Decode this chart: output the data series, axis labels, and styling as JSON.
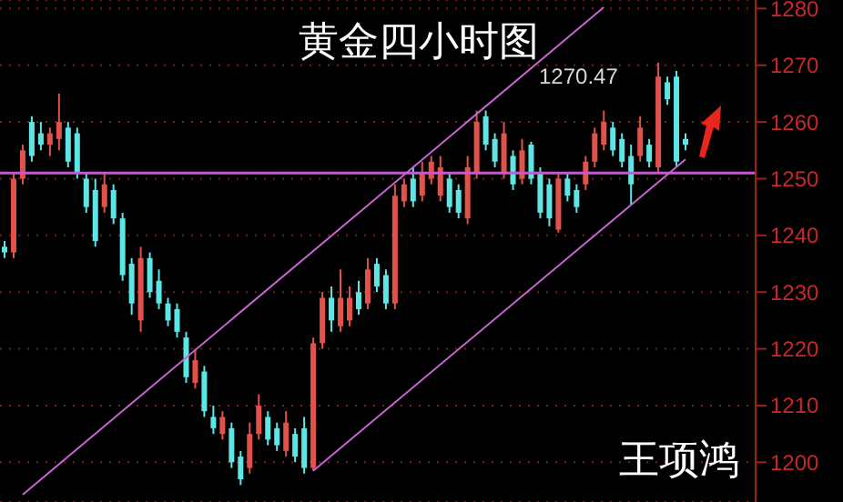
{
  "chart_data": {
    "type": "candlestick",
    "title": "黄金四小时图",
    "categories": [
      null,
      null,
      null,
      null,
      null,
      null,
      null,
      null,
      null,
      null,
      null,
      null,
      null,
      null,
      null,
      null,
      null,
      null,
      null,
      null,
      null,
      null,
      null,
      null,
      null,
      null,
      null,
      null,
      null,
      null,
      null,
      null,
      null,
      null,
      null,
      null,
      null,
      null,
      null,
      null,
      null,
      null,
      null,
      null,
      null,
      null,
      null,
      null,
      null,
      null,
      null,
      null,
      null,
      null,
      null,
      null,
      null,
      null,
      null,
      null,
      null,
      null,
      null,
      null,
      null,
      null,
      null,
      null,
      null,
      null,
      null,
      null,
      null,
      null,
      null,
      null
    ],
    "ohlc": [
      [
        1238,
        1239,
        1236,
        1237
      ],
      [
        1237,
        1251,
        1236,
        1250
      ],
      [
        1250,
        1256,
        1249,
        1255
      ],
      [
        1260,
        1261,
        1253,
        1254
      ],
      [
        1258,
        1260,
        1255,
        1256
      ],
      [
        1256,
        1259,
        1254,
        1258
      ],
      [
        1257,
        1265,
        1255,
        1260
      ],
      [
        1259,
        1260,
        1252,
        1253
      ],
      [
        1258,
        1259,
        1250,
        1251
      ],
      [
        1250,
        1251,
        1244,
        1245
      ],
      [
        1248,
        1250,
        1238,
        1239
      ],
      [
        1245,
        1251,
        1244,
        1249
      ],
      [
        1248,
        1249,
        1242,
        1243
      ],
      [
        1243,
        1244,
        1232,
        1233
      ],
      [
        1235,
        1236,
        1226,
        1228
      ],
      [
        1225,
        1238,
        1223,
        1236
      ],
      [
        1236,
        1237,
        1229,
        1230
      ],
      [
        1232,
        1234,
        1227,
        1228
      ],
      [
        1228,
        1229,
        1224,
        1225
      ],
      [
        1227,
        1228,
        1222,
        1223
      ],
      [
        1222,
        1223,
        1214,
        1215
      ],
      [
        1214,
        1220,
        1213,
        1218
      ],
      [
        1216,
        1217,
        1208,
        1209
      ],
      [
        1208,
        1210,
        1205,
        1206
      ],
      [
        1205,
        1209,
        1204,
        1208
      ],
      [
        1206,
        1207,
        1199,
        1200
      ],
      [
        1201,
        1202,
        1196,
        1197
      ],
      [
        1199,
        1207,
        1198,
        1205
      ],
      [
        1205,
        1212,
        1204,
        1210
      ],
      [
        1208,
        1209,
        1203,
        1204
      ],
      [
        1206,
        1207,
        1202,
        1203
      ],
      [
        1202,
        1209,
        1201,
        1207
      ],
      [
        1205,
        1206,
        1200,
        1201
      ],
      [
        1206,
        1208,
        1198,
        1199
      ],
      [
        1199,
        1222,
        1198.5,
        1221
      ],
      [
        1221,
        1230,
        1220,
        1229
      ],
      [
        1229,
        1231,
        1223,
        1225
      ],
      [
        1224,
        1234,
        1223,
        1229
      ],
      [
        1225,
        1231,
        1224,
        1229
      ],
      [
        1230,
        1232,
        1226,
        1227
      ],
      [
        1228,
        1236,
        1227,
        1234
      ],
      [
        1235,
        1236,
        1230,
        1231
      ],
      [
        1233,
        1234,
        1227,
        1228
      ],
      [
        1228,
        1249,
        1227,
        1247
      ],
      [
        1246,
        1250,
        1245,
        1249
      ],
      [
        1250,
        1252,
        1245,
        1246
      ],
      [
        1247,
        1253,
        1246,
        1251
      ],
      [
        1250,
        1254,
        1249,
        1253
      ],
      [
        1247,
        1254,
        1246,
        1252
      ],
      [
        1250,
        1251,
        1244,
        1245
      ],
      [
        1248,
        1249,
        1243,
        1244
      ],
      [
        1243,
        1254,
        1242,
        1252
      ],
      [
        1251,
        1262,
        1250,
        1260
      ],
      [
        1261,
        1262,
        1255,
        1256
      ],
      [
        1257,
        1258,
        1252,
        1253
      ],
      [
        1251,
        1260,
        1250,
        1258
      ],
      [
        1254,
        1255,
        1248,
        1249
      ],
      [
        1250,
        1257,
        1249,
        1255
      ],
      [
        1256,
        1256.5,
        1249,
        1250
      ],
      [
        1251,
        1252,
        1243,
        1244
      ],
      [
        1249,
        1250,
        1241.6,
        1243
      ],
      [
        1241,
        1251,
        1240.5,
        1250
      ],
      [
        1250,
        1251,
        1246,
        1247
      ],
      [
        1248,
        1249,
        1244,
        1245
      ],
      [
        1249,
        1254,
        1248,
        1253
      ],
      [
        1253,
        1259,
        1252,
        1258
      ],
      [
        1256,
        1262,
        1255,
        1260
      ],
      [
        1259,
        1260,
        1254,
        1255
      ],
      [
        1257,
        1258,
        1252,
        1253
      ],
      [
        1254,
        1256,
        1245.4,
        1249
      ],
      [
        1254,
        1261,
        1253,
        1259
      ],
      [
        1256,
        1257,
        1252,
        1253
      ],
      [
        1252,
        1270.47,
        1251,
        1268
      ],
      [
        1267,
        1268,
        1263,
        1264
      ],
      [
        1268,
        1269,
        1252,
        1253
      ],
      [
        1257,
        1258,
        1255,
        1256
      ]
    ],
    "colors": [
      "#5ee6e6",
      "#e0524a",
      "#e0524a",
      "#5ee6e6",
      "#5ee6e6",
      "#e0524a",
      "#e0524a",
      "#5ee6e6",
      "#5ee6e6",
      "#5ee6e6",
      "#5ee6e6",
      "#e0524a",
      "#5ee6e6",
      "#5ee6e6",
      "#5ee6e6",
      "#e0524a",
      "#5ee6e6",
      "#5ee6e6",
      "#5ee6e6",
      "#5ee6e6",
      "#5ee6e6",
      "#e0524a",
      "#5ee6e6",
      "#5ee6e6",
      "#e0524a",
      "#5ee6e6",
      "#5ee6e6",
      "#e0524a",
      "#e0524a",
      "#5ee6e6",
      "#5ee6e6",
      "#e0524a",
      "#5ee6e6",
      "#5ee6e6",
      "#e0524a",
      "#e0524a",
      "#5ee6e6",
      "#e0524a",
      "#e0524a",
      "#5ee6e6",
      "#e0524a",
      "#5ee6e6",
      "#5ee6e6",
      "#e0524a",
      "#e0524a",
      "#5ee6e6",
      "#e0524a",
      "#e0524a",
      "#e0524a",
      "#5ee6e6",
      "#5ee6e6",
      "#e0524a",
      "#e0524a",
      "#5ee6e6",
      "#5ee6e6",
      "#e0524a",
      "#5ee6e6",
      "#e0524a",
      "#5ee6e6",
      "#5ee6e6",
      "#5ee6e6",
      "#e0524a",
      "#5ee6e6",
      "#5ee6e6",
      "#e0524a",
      "#e0524a",
      "#e0524a",
      "#5ee6e6",
      "#5ee6e6",
      "#5ee6e6",
      "#e0524a",
      "#5ee6e6",
      "#e0524a",
      "#5ee6e6",
      "#5ee6e6",
      "#5ee6e6"
    ],
    "series": [
      {
        "type": "line",
        "color": "#c864d2",
        "values": [
          null,
          null,
          1194.3,
          null,
          null,
          null,
          null,
          null,
          null,
          null,
          null,
          null,
          null,
          null,
          null,
          null,
          null,
          null,
          null,
          null,
          null,
          null,
          null,
          null,
          null,
          null,
          null,
          null,
          null,
          null,
          null,
          null,
          null,
          null,
          null,
          null,
          null,
          null,
          null,
          null,
          null,
          null,
          null,
          null,
          null,
          null,
          null,
          null,
          null,
          null,
          null,
          null,
          null,
          null,
          null,
          null,
          null,
          null,
          null,
          null,
          null,
          null,
          null,
          null,
          null,
          null,
          1280.2,
          null,
          null,
          null,
          null,
          null,
          null,
          null,
          null,
          null
        ]
      },
      {
        "type": "line",
        "color": "#c864d2",
        "values": [
          null,
          null,
          null,
          null,
          null,
          null,
          null,
          null,
          null,
          null,
          null,
          null,
          null,
          null,
          null,
          null,
          null,
          null,
          null,
          null,
          null,
          null,
          null,
          null,
          null,
          null,
          null,
          null,
          null,
          null,
          null,
          null,
          null,
          null,
          1198.5,
          null,
          null,
          null,
          null,
          null,
          null,
          null,
          null,
          null,
          null,
          null,
          null,
          null,
          null,
          null,
          null,
          null,
          null,
          null,
          null,
          null,
          null,
          null,
          null,
          null,
          null,
          null,
          null,
          null,
          null,
          null,
          null,
          null,
          null,
          null,
          null,
          null,
          null,
          null,
          null,
          1253.4
        ]
      }
    ],
    "ref_lines": [
      {
        "axis": "y",
        "value": 1251,
        "color": "#d050e0"
      }
    ],
    "ylim": [
      1193,
      1281.5
    ],
    "yticks": [
      1200,
      1210,
      1220,
      1230,
      1240,
      1250,
      1260,
      1270,
      1280
    ],
    "grid": "y",
    "tick_labels": "y",
    "annotations": [
      "1270.47",
      "王项鸿"
    ]
  }
}
